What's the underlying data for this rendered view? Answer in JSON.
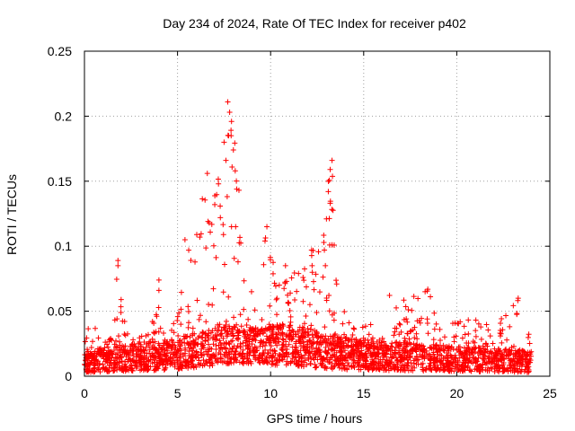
{
  "chart_data": {
    "type": "scatter",
    "title": "Day 234 of 2024, Rate Of TEC Index for receiver p402",
    "xlabel": "GPS time / hours",
    "ylabel": "ROTI / TECUs",
    "xlim": [
      0,
      25
    ],
    "ylim": [
      0,
      0.25
    ],
    "xticks": [
      0,
      5,
      10,
      15,
      20,
      25
    ],
    "yticks": [
      0,
      0.05,
      0.1,
      0.15,
      0.2,
      0.25
    ],
    "xtick_labels": [
      "0",
      "5",
      "10",
      "15",
      "20",
      "25"
    ],
    "ytick_labels": [
      "0",
      "0.05",
      "0.1",
      "0.15",
      "0.2",
      "0.25"
    ],
    "grid": true,
    "marker": "+",
    "series_color": "#ff0000",
    "data_span_hours": [
      0,
      24
    ],
    "envelope": [
      [
        0.0,
        0.035
      ],
      [
        0.5,
        0.045
      ],
      [
        1.0,
        0.025
      ],
      [
        1.5,
        0.03
      ],
      [
        1.8,
        0.088
      ],
      [
        2.2,
        0.04
      ],
      [
        3.0,
        0.03
      ],
      [
        3.5,
        0.035
      ],
      [
        4.0,
        0.073
      ],
      [
        4.5,
        0.035
      ],
      [
        5.0,
        0.045
      ],
      [
        5.5,
        0.105
      ],
      [
        6.0,
        0.11
      ],
      [
        6.5,
        0.155
      ],
      [
        7.0,
        0.16
      ],
      [
        7.5,
        0.173
      ],
      [
        7.8,
        0.21
      ],
      [
        8.2,
        0.17
      ],
      [
        8.5,
        0.08
      ],
      [
        9.0,
        0.065
      ],
      [
        9.5,
        0.09
      ],
      [
        9.8,
        0.115
      ],
      [
        10.2,
        0.09
      ],
      [
        10.8,
        0.08
      ],
      [
        11.5,
        0.08
      ],
      [
        12.2,
        0.098
      ],
      [
        12.8,
        0.1
      ],
      [
        13.0,
        0.155
      ],
      [
        13.3,
        0.165
      ],
      [
        13.6,
        0.06
      ],
      [
        14.5,
        0.04
      ],
      [
        15.5,
        0.04
      ],
      [
        16.5,
        0.065
      ],
      [
        17.5,
        0.065
      ],
      [
        18.5,
        0.07
      ],
      [
        19.5,
        0.04
      ],
      [
        20.5,
        0.045
      ],
      [
        21.5,
        0.045
      ],
      [
        22.5,
        0.045
      ],
      [
        23.3,
        0.06
      ],
      [
        24.0,
        0.035
      ]
    ],
    "baseline_band": [
      [
        0,
        0.003,
        0.02
      ],
      [
        5,
        0.005,
        0.03
      ],
      [
        8,
        0.01,
        0.04
      ],
      [
        11,
        0.008,
        0.04
      ],
      [
        14,
        0.005,
        0.03
      ],
      [
        18,
        0.004,
        0.025
      ],
      [
        24,
        0.003,
        0.02
      ]
    ],
    "highlighted_points": [
      {
        "x": 7.7,
        "y": 0.211
      },
      {
        "x": 7.8,
        "y": 0.203
      },
      {
        "x": 7.9,
        "y": 0.196
      },
      {
        "x": 7.5,
        "y": 0.18
      },
      {
        "x": 8.0,
        "y": 0.174
      },
      {
        "x": 7.6,
        "y": 0.166
      },
      {
        "x": 8.1,
        "y": 0.158
      },
      {
        "x": 6.6,
        "y": 0.156
      },
      {
        "x": 7.2,
        "y": 0.148
      },
      {
        "x": 8.3,
        "y": 0.143
      },
      {
        "x": 7.0,
        "y": 0.132
      },
      {
        "x": 7.3,
        "y": 0.122
      },
      {
        "x": 6.7,
        "y": 0.118
      },
      {
        "x": 7.9,
        "y": 0.115
      },
      {
        "x": 6.2,
        "y": 0.107
      },
      {
        "x": 5.4,
        "y": 0.105
      },
      {
        "x": 9.8,
        "y": 0.115
      },
      {
        "x": 9.7,
        "y": 0.104
      },
      {
        "x": 13.3,
        "y": 0.166
      },
      {
        "x": 13.2,
        "y": 0.159
      },
      {
        "x": 13.1,
        "y": 0.142
      },
      {
        "x": 13.2,
        "y": 0.133
      },
      {
        "x": 13.0,
        "y": 0.121
      },
      {
        "x": 13.3,
        "y": 0.101
      },
      {
        "x": 12.2,
        "y": 0.097
      },
      {
        "x": 1.8,
        "y": 0.089
      },
      {
        "x": 1.8,
        "y": 0.085
      },
      {
        "x": 4.0,
        "y": 0.074
      },
      {
        "x": 4.0,
        "y": 0.066
      },
      {
        "x": 10.8,
        "y": 0.085
      },
      {
        "x": 11.5,
        "y": 0.079
      },
      {
        "x": 23.3,
        "y": 0.06
      },
      {
        "x": 18.3,
        "y": 0.065
      }
    ]
  }
}
